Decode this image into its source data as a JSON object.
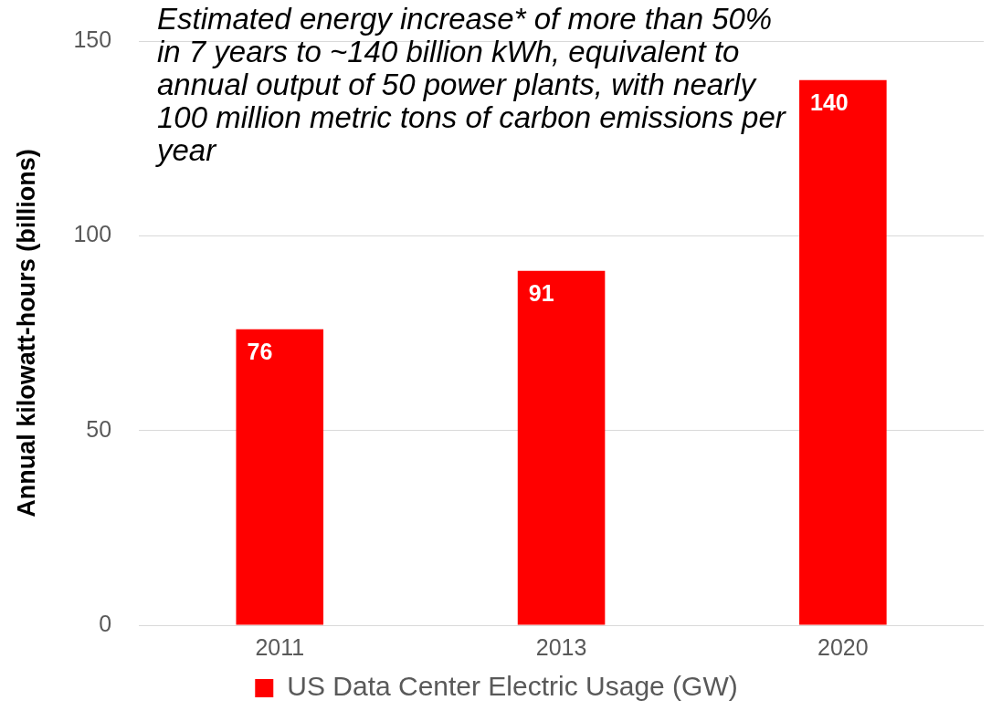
{
  "chart_data": {
    "type": "bar",
    "ylabel": "Annual kilowatt-hours (billions)",
    "annotations": [
      "Estimated energy increase* of more than 50% in 7 years to ~140 billion kWh, equivalent to annual output of 50 power plants, with nearly 100 million metric tons of carbon emissions per year"
    ],
    "categories": [
      "2011",
      "2013",
      "2020"
    ],
    "series": [
      {
        "name": "US Data Center Electric Usage (GW)",
        "color": "#ff0000",
        "values": [
          76,
          91,
          140
        ]
      }
    ],
    "ylim": [
      0,
      150
    ],
    "yticks": [
      0,
      50,
      100,
      150
    ],
    "grid": "y",
    "legend": "bottom",
    "data_labels": true
  }
}
